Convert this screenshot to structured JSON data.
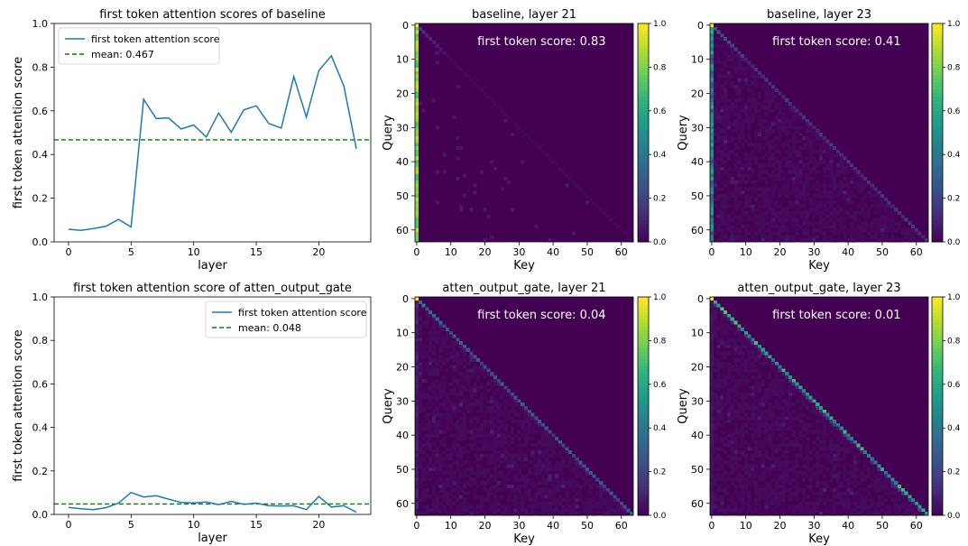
{
  "chart_data": [
    {
      "type": "line",
      "title": "first token attention scores of baseline",
      "xlabel": "layer",
      "ylabel": "first token attention score",
      "xlim": [
        -1.15,
        24.15
      ],
      "ylim": [
        0,
        1.0
      ],
      "xticks": [
        0,
        5,
        10,
        15,
        20
      ],
      "yticks": [
        0.0,
        0.2,
        0.4,
        0.6,
        0.8,
        1.0
      ],
      "legend_position": "upper left",
      "series": [
        {
          "name": "first token attention score",
          "color": "#1f77b4",
          "x": [
            0,
            1,
            2,
            3,
            4,
            5,
            6,
            7,
            8,
            9,
            10,
            11,
            12,
            13,
            14,
            15,
            16,
            17,
            18,
            19,
            20,
            21,
            22,
            23
          ],
          "values": [
            0.058,
            0.053,
            0.061,
            0.072,
            0.103,
            0.068,
            0.653,
            0.565,
            0.567,
            0.517,
            0.535,
            0.48,
            0.59,
            0.502,
            0.604,
            0.623,
            0.542,
            0.521,
            0.757,
            0.571,
            0.784,
            0.852,
            0.713,
            0.426
          ]
        },
        {
          "name": "mean: 0.467",
          "style": "dashed",
          "color": "#008000",
          "value": 0.467
        }
      ]
    },
    {
      "type": "heatmap",
      "title": "baseline, layer 21",
      "xlabel": "Key",
      "ylabel": "Query",
      "size": 64,
      "ticks": [
        0,
        10,
        20,
        30,
        40,
        50,
        60
      ],
      "colorbar_ticks": [
        "0.0",
        "0.2",
        "0.4",
        "0.6",
        "0.8",
        "1.0"
      ],
      "colormap": "viridis",
      "clim": [
        0,
        1
      ],
      "annotation": "first token score: 0.83",
      "first_token_score": 0.83,
      "diagonal_strength": 0.02,
      "pattern": "causal attention mass concentrated on key 0 (attention sink)"
    },
    {
      "type": "heatmap",
      "title": "baseline, layer 23",
      "xlabel": "Key",
      "ylabel": "Query",
      "size": 64,
      "ticks": [
        0,
        10,
        20,
        30,
        40,
        50,
        60
      ],
      "colorbar_ticks": [
        "0.0",
        "0.2",
        "0.4",
        "0.6",
        "0.8",
        "1.0"
      ],
      "colormap": "viridis",
      "clim": [
        0,
        1
      ],
      "annotation": "first token score: 0.41",
      "first_token_score": 0.41,
      "diagonal_strength": 0.14,
      "pattern": "causal, partial sink on key 0 with visible diagonal"
    },
    {
      "type": "line",
      "title": "first token attention score of atten_output_gate",
      "xlabel": "layer",
      "ylabel": "first token attention score",
      "xlim": [
        -1.15,
        24.15
      ],
      "ylim": [
        0,
        1.0
      ],
      "xticks": [
        0,
        5,
        10,
        15,
        20
      ],
      "yticks": [
        0.0,
        0.2,
        0.4,
        0.6,
        0.8,
        1.0
      ],
      "legend_position": "upper right",
      "series": [
        {
          "name": "first token attention score",
          "color": "#1f77b4",
          "x": [
            0,
            1,
            2,
            3,
            4,
            5,
            6,
            7,
            8,
            9,
            10,
            11,
            12,
            13,
            14,
            15,
            16,
            17,
            18,
            19,
            20,
            21,
            22,
            23
          ],
          "values": [
            0.032,
            0.026,
            0.022,
            0.031,
            0.052,
            0.101,
            0.08,
            0.086,
            0.07,
            0.055,
            0.053,
            0.057,
            0.045,
            0.06,
            0.046,
            0.052,
            0.04,
            0.038,
            0.04,
            0.022,
            0.082,
            0.034,
            0.04,
            0.01
          ]
        },
        {
          "name": "mean: 0.048",
          "style": "dashed",
          "color": "#008000",
          "value": 0.048
        }
      ]
    },
    {
      "type": "heatmap",
      "title": "atten_output_gate, layer 21",
      "xlabel": "Key",
      "ylabel": "Query",
      "size": 64,
      "ticks": [
        0,
        10,
        20,
        30,
        40,
        50,
        60
      ],
      "colorbar_ticks": [
        "0.0",
        "0.2",
        "0.4",
        "0.6",
        "0.8",
        "1.0"
      ],
      "colormap": "viridis",
      "clim": [
        0,
        1
      ],
      "annotation": "first token score: 0.04",
      "first_token_score": 0.04,
      "diagonal_strength": 0.25,
      "pattern": "causal, attention spread along diagonal, no sink"
    },
    {
      "type": "heatmap",
      "title": "atten_output_gate, layer 23",
      "xlabel": "Key",
      "ylabel": "Query",
      "size": 64,
      "ticks": [
        0,
        10,
        20,
        30,
        40,
        50,
        60
      ],
      "colorbar_ticks": [
        "0.0",
        "0.2",
        "0.4",
        "0.6",
        "0.8",
        "1.0"
      ],
      "colormap": "viridis",
      "clim": [
        0,
        1
      ],
      "annotation": "first token score: 0.01",
      "first_token_score": 0.01,
      "diagonal_strength": 0.55,
      "pattern": "causal, strong diagonal, no sink"
    }
  ]
}
